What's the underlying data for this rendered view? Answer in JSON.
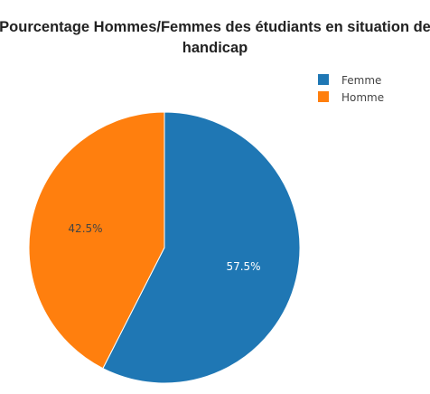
{
  "chart_data": {
    "type": "pie",
    "title_lines": [
      "Pourcentage Hommes/Femmes des étudiants en situation de",
      "handicap"
    ],
    "labels": [
      "Femme",
      "Homme"
    ],
    "values": [
      57.5,
      42.5
    ],
    "value_labels": [
      "57.5%",
      "42.5%"
    ],
    "colors": [
      "#1f77b4",
      "#ff7f0e"
    ],
    "label_colors": [
      "#ffffff",
      "#444444"
    ],
    "legend_position": "top-right",
    "start_angle": "top",
    "direction": "clockwise"
  }
}
